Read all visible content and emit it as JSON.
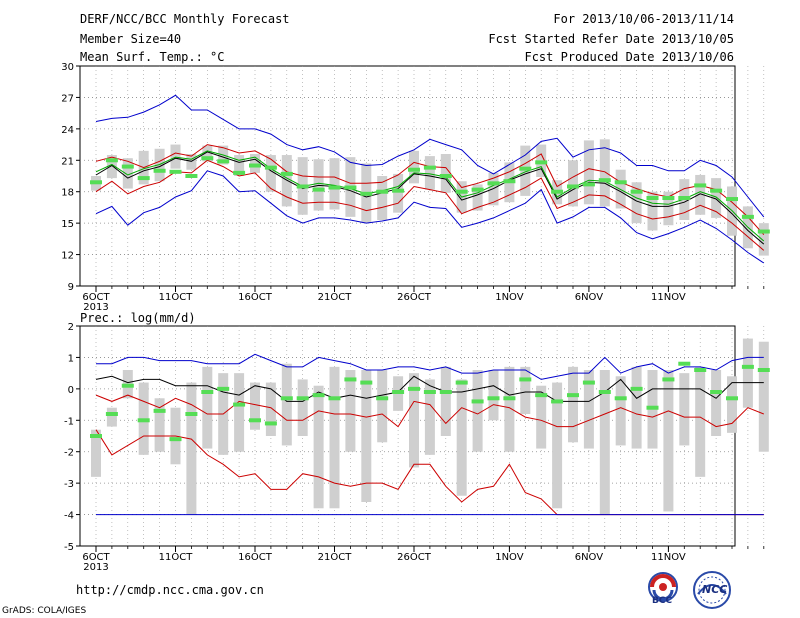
{
  "header": {
    "title": "DERF/NCC/BCC Monthly Forecast",
    "member_size": "Member Size=40",
    "variable": "Mean Surf. Temp.: °C",
    "period": "For 2013/10/06-2013/11/14",
    "started": "Fcst Started Refer Date 2013/10/05",
    "produced": "Fcst Produced Date 2013/10/06"
  },
  "footer": {
    "url": "http://cmdp.ncc.cma.gov.cn",
    "grads": "GrADS: COLA/IGES",
    "logo_bcc": "BCC",
    "logo_ncc": "NCC"
  },
  "colors": {
    "max_min": "#0000cc",
    "spread": "#cc0000",
    "mean": "#000000",
    "median": "#00aa00",
    "climatology": "#55dd55",
    "boxes": "#cfcfcf"
  },
  "chart_data": [
    {
      "type": "line",
      "title": "",
      "ylabel": "Mean Surf. Temp.: °C",
      "ylim": [
        9,
        30
      ],
      "yticks": [
        9,
        12,
        15,
        18,
        21,
        24,
        27,
        30
      ],
      "x_start": "2013-10-06",
      "x_end": "2013-11-14",
      "xtick_labels": [
        "6OCT",
        "11OCT",
        "16OCT",
        "21OCT",
        "26OCT",
        "1NOV",
        "6NOV",
        "11NOV"
      ],
      "xtick_days": [
        0,
        5,
        10,
        15,
        20,
        26,
        31,
        36
      ],
      "year_label": "2013",
      "series": [
        {
          "name": "max",
          "values": [
            24.7,
            25.0,
            25.1,
            25.6,
            26.3,
            27.2,
            25.8,
            25.8,
            24.9,
            24.0,
            24.0,
            23.5,
            22.5,
            22.0,
            22.3,
            21.8,
            20.8,
            20.5,
            20.6,
            21.4,
            22.0,
            23.0,
            22.5,
            22.0,
            20.5,
            19.7,
            20.6,
            21.5,
            22.8,
            23.1,
            21.3,
            22.0,
            22.2,
            21.7,
            20.5,
            20.5,
            20.0,
            20.0,
            21.0,
            20.5,
            19.4,
            17.5,
            15.6
          ]
        },
        {
          "name": "upper",
          "values": [
            20.9,
            21.3,
            20.9,
            20.3,
            20.9,
            21.7,
            21.4,
            22.5,
            22.2,
            21.7,
            21.9,
            21.1,
            19.9,
            19.5,
            19.4,
            19.4,
            18.8,
            18.8,
            18.9,
            19.6,
            20.8,
            20.4,
            20.3,
            18.4,
            18.8,
            19.3,
            19.9,
            20.7,
            21.6,
            18.5,
            19.4,
            20.2,
            19.9,
            18.9,
            18.3,
            17.8,
            17.5,
            18.3,
            18.6,
            18.2,
            17.0,
            15.6,
            13.9
          ]
        },
        {
          "name": "mean",
          "values": [
            19.6,
            20.5,
            19.3,
            20.0,
            20.4,
            21.2,
            20.9,
            21.8,
            21.3,
            20.8,
            21.1,
            20.0,
            19.1,
            18.3,
            18.6,
            18.5,
            18.1,
            17.5,
            17.9,
            18.3,
            19.7,
            19.5,
            19.2,
            17.2,
            17.7,
            18.3,
            19.1,
            19.7,
            20.2,
            17.3,
            18.2,
            18.9,
            18.8,
            18.0,
            17.1,
            16.6,
            16.6,
            17.0,
            17.8,
            17.3,
            15.9,
            14.3,
            13.0
          ]
        },
        {
          "name": "median",
          "values": [
            19.9,
            20.6,
            19.6,
            20.2,
            20.6,
            21.3,
            21.1,
            21.9,
            21.5,
            21.0,
            21.3,
            20.2,
            19.3,
            18.5,
            18.8,
            18.6,
            18.3,
            17.8,
            18.1,
            18.5,
            19.8,
            19.7,
            19.4,
            17.5,
            17.9,
            18.6,
            19.2,
            19.9,
            20.4,
            17.5,
            18.4,
            19.1,
            19.0,
            18.2,
            17.4,
            16.9,
            16.8,
            17.3,
            18.0,
            17.5,
            16.2,
            14.6,
            13.3
          ]
        },
        {
          "name": "lower",
          "values": [
            18.0,
            19.0,
            17.8,
            18.5,
            18.9,
            19.9,
            19.8,
            21.0,
            20.4,
            19.5,
            19.8,
            18.3,
            17.5,
            16.9,
            17.0,
            17.0,
            16.7,
            16.2,
            16.5,
            16.9,
            18.5,
            18.2,
            17.9,
            15.9,
            16.5,
            17.0,
            17.7,
            18.4,
            19.3,
            16.4,
            17.0,
            17.7,
            17.6,
            16.8,
            15.9,
            15.4,
            15.6,
            16.0,
            16.7,
            16.1,
            15.0,
            13.7,
            12.4
          ]
        },
        {
          "name": "min",
          "values": [
            15.9,
            16.6,
            14.8,
            16.0,
            16.5,
            17.5,
            18.1,
            20.0,
            19.5,
            18.0,
            18.1,
            16.9,
            15.7,
            15.0,
            15.5,
            15.5,
            15.3,
            15.0,
            15.2,
            15.5,
            17.0,
            16.5,
            16.4,
            14.6,
            15.0,
            15.5,
            16.2,
            16.9,
            18.2,
            15.0,
            15.6,
            16.5,
            16.5,
            15.5,
            14.1,
            13.5,
            14.0,
            14.6,
            15.3,
            14.5,
            13.4,
            12.2,
            11.2
          ]
        },
        {
          "name": "climatology",
          "values": [
            18.9,
            21.0,
            20.4,
            19.3,
            20.0,
            19.9,
            19.5,
            21.2,
            20.9,
            19.8,
            20.5,
            20.3,
            19.7,
            18.5,
            18.2,
            18.4,
            18.4,
            17.8,
            18.0,
            18.1,
            20.1,
            20.3,
            19.5,
            18.0,
            18.2,
            18.8,
            19.0,
            20.2,
            20.8,
            18.0,
            18.5,
            18.7,
            19.1,
            18.9,
            18.0,
            17.4,
            17.4,
            17.4,
            18.6,
            18.1,
            17.3,
            15.6,
            14.2
          ]
        }
      ],
      "boxes_low": [
        18.1,
        19.3,
        18.3,
        18.7,
        19.0,
        20.2,
        20.1,
        20.9,
        20.6,
        19.5,
        19.8,
        18.0,
        16.6,
        15.8,
        16.2,
        16.3,
        15.6,
        15.0,
        15.3,
        16.0,
        18.8,
        18.2,
        17.9,
        16.0,
        16.2,
        16.7,
        17.0,
        17.6,
        19.4,
        16.8,
        16.6,
        16.8,
        16.6,
        16.4,
        15.0,
        14.3,
        14.8,
        15.3,
        15.8,
        15.5,
        13.8,
        12.6,
        11.9
      ],
      "boxes_high": [
        19.5,
        21.5,
        21.2,
        21.9,
        22.1,
        22.5,
        21.6,
        22.4,
        22.4,
        21.5,
        21.6,
        21.5,
        21.5,
        21.3,
        21.1,
        21.2,
        21.3,
        20.7,
        19.5,
        19.7,
        21.9,
        21.4,
        21.6,
        19.0,
        18.7,
        19.8,
        20.8,
        22.4,
        22.5,
        19.1,
        21.0,
        22.9,
        23.0,
        20.1,
        18.9,
        18.0,
        18.0,
        19.2,
        19.6,
        19.3,
        18.5,
        16.6,
        15.0
      ]
    },
    {
      "type": "line",
      "title": "",
      "ylabel": "Prec.: log(mm/d)",
      "ylim": [
        -5,
        2
      ],
      "yticks": [
        -5,
        -4,
        -3,
        -2,
        -1,
        0,
        1,
        2
      ],
      "x_start": "2013-10-06",
      "x_end": "2013-11-14",
      "xtick_labels": [
        "6OCT",
        "11OCT",
        "16OCT",
        "21OCT",
        "26OCT",
        "1NOV",
        "6NOV",
        "11NOV"
      ],
      "xtick_days": [
        0,
        5,
        10,
        15,
        20,
        26,
        31,
        36
      ],
      "year_label": "2013",
      "series": [
        {
          "name": "max",
          "values": [
            0.8,
            0.8,
            1.0,
            1.0,
            0.9,
            0.9,
            0.9,
            0.8,
            0.8,
            0.8,
            1.1,
            0.9,
            0.7,
            0.7,
            1.0,
            0.9,
            0.8,
            0.6,
            0.6,
            0.7,
            0.7,
            0.6,
            0.7,
            0.5,
            0.5,
            0.6,
            0.6,
            0.6,
            0.3,
            0.4,
            0.5,
            0.5,
            1.0,
            0.5,
            0.7,
            0.8,
            0.5,
            0.7,
            0.7,
            0.6,
            0.9,
            1.0,
            1.0
          ]
        },
        {
          "name": "mean",
          "values": [
            0.3,
            0.4,
            0.2,
            0.3,
            0.3,
            0.1,
            0.1,
            0.1,
            -0.1,
            -0.2,
            0.1,
            0.0,
            -0.4,
            -0.4,
            -0.1,
            -0.3,
            -0.2,
            -0.3,
            -0.2,
            -0.1,
            0.4,
            0.1,
            -0.1,
            -0.1,
            0.0,
            0.1,
            -0.2,
            -0.1,
            -0.1,
            -0.4,
            -0.4,
            -0.4,
            -0.1,
            0.3,
            -0.3,
            0.0,
            0.0,
            0.0,
            0.0,
            -0.3,
            0.2,
            0.2,
            0.2
          ]
        },
        {
          "name": "min_line",
          "values": [
            -0.2,
            -0.4,
            -0.2,
            -0.4,
            -0.6,
            -0.3,
            -0.5,
            -0.8,
            -0.8,
            -0.4,
            -0.5,
            -0.6,
            -1.0,
            -1.0,
            -0.7,
            -0.8,
            -0.8,
            -0.9,
            -0.8,
            -1.2,
            -0.4,
            -0.5,
            -1.1,
            -0.6,
            -0.8,
            -0.5,
            -0.6,
            -0.9,
            -1.0,
            -1.2,
            -1.2,
            -1.0,
            -0.8,
            -0.6,
            -0.8,
            -0.9,
            -0.7,
            -0.9,
            -0.9,
            -1.2,
            -1.1,
            -0.6,
            -0.8
          ]
        },
        {
          "name": "lower",
          "values": [
            -1.3,
            -2.1,
            -1.8,
            -1.5,
            -1.5,
            -1.5,
            -1.6,
            -2.1,
            -2.4,
            -2.8,
            -2.7,
            -3.2,
            -3.2,
            -2.7,
            -2.8,
            -3.0,
            -3.1,
            -3.0,
            -3.0,
            -3.2,
            -2.4,
            -2.4,
            -3.1,
            -3.6,
            -3.2,
            -3.1,
            -2.4,
            -3.3,
            -3.5,
            -4.0,
            -4.0,
            -4.0,
            -4.0,
            -4.0,
            -4.0,
            -4.0,
            -4.0,
            -4.0,
            -4.0,
            -4.0,
            -4.0,
            -4.0,
            -4.0
          ]
        },
        {
          "name": "floor",
          "values": [
            -4.0,
            -4.0,
            -4.0,
            -4.0,
            -4.0,
            -4.0,
            -4.0,
            -4.0,
            -4.0,
            -4.0,
            -4.0,
            -4.0,
            -4.0,
            -4.0,
            -4.0,
            -4.0,
            -4.0,
            -4.0,
            -4.0,
            -4.0,
            -4.0,
            -4.0,
            -4.0,
            -4.0,
            -4.0,
            -4.0,
            -4.0,
            -4.0,
            -4.0,
            -4.0,
            -4.0,
            -4.0,
            -4.0,
            -4.0,
            -4.0,
            -4.0,
            -4.0,
            -4.0,
            -4.0,
            -4.0,
            -4.0,
            -4.0,
            -4.0
          ]
        },
        {
          "name": "climatology",
          "values": [
            -1.5,
            -0.8,
            0.1,
            -1.0,
            -0.7,
            -1.6,
            -0.8,
            -0.1,
            0.0,
            -0.5,
            -1.0,
            -1.1,
            -0.3,
            -0.3,
            -0.2,
            -0.3,
            0.3,
            0.2,
            -0.3,
            -0.1,
            0.0,
            -0.1,
            -0.1,
            0.2,
            -0.4,
            -0.3,
            -0.3,
            0.3,
            -0.2,
            -0.4,
            -0.2,
            0.2,
            -0.1,
            -0.3,
            0.0,
            -0.6,
            0.3,
            0.8,
            0.6,
            -0.1,
            -0.3,
            0.7,
            0.6
          ]
        }
      ],
      "boxes_low": [
        -2.8,
        -1.2,
        -0.3,
        -2.1,
        -2.0,
        -2.4,
        -4.0,
        -1.9,
        -2.1,
        -2.0,
        -1.3,
        -1.5,
        -1.8,
        -1.5,
        -3.8,
        -3.8,
        -2.0,
        -3.6,
        -1.7,
        -0.7,
        -2.5,
        -2.1,
        -1.5,
        -3.4,
        -2.0,
        -1.0,
        -2.0,
        -0.8,
        -1.9,
        -3.8,
        -1.7,
        -1.9,
        -4.0,
        -1.8,
        -1.9,
        -1.9,
        -3.9,
        -1.8,
        -2.8,
        -1.5,
        -1.4,
        -0.6,
        -2.0
      ],
      "boxes_high": [
        -1.3,
        -0.6,
        0.6,
        0.2,
        -0.3,
        -0.6,
        0.2,
        0.7,
        0.5,
        0.5,
        0.2,
        0.2,
        0.8,
        0.3,
        0.1,
        0.7,
        0.6,
        0.6,
        0.6,
        0.4,
        0.5,
        0.3,
        0.7,
        0.3,
        0.6,
        0.6,
        0.7,
        0.7,
        0.1,
        0.2,
        0.7,
        0.6,
        0.6,
        0.4,
        0.7,
        0.6,
        0.6,
        0.5,
        0.7,
        0.6,
        0.4,
        1.6,
        1.5
      ]
    }
  ]
}
